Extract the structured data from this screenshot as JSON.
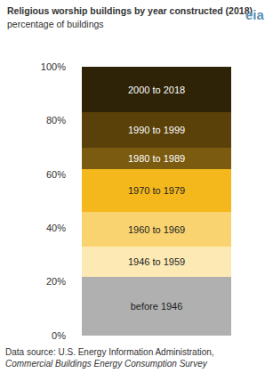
{
  "chart_data": {
    "type": "bar",
    "title": "Religious worship buildings by year constructed (2018)",
    "subtitle": "percentage of buildings",
    "logo": "eia",
    "source": {
      "text": "Data source: U.S. Energy Information Administration,",
      "italic": "Commercial Buildings Energy Consumption Survey"
    },
    "categories": [
      null
    ],
    "series": [
      {
        "name": "before 1946",
        "color": "#b0b0b0",
        "values": [
          22
        ]
      },
      {
        "name": "1946 to 1959",
        "color": "#fce9b4",
        "values": [
          11
        ]
      },
      {
        "name": "1960 to 1969",
        "color": "#f9d36f",
        "values": [
          13
        ]
      },
      {
        "name": "1970 to 1979",
        "color": "#f4b81c",
        "values": [
          16
        ]
      },
      {
        "name": "1980 to 1989",
        "color": "#7a5b10",
        "values": [
          8
        ]
      },
      {
        "name": "1990 to 1999",
        "color": "#594109",
        "values": [
          13
        ]
      },
      {
        "name": "2000 to 2018",
        "color": "#2e2306",
        "values": [
          17
        ]
      }
    ],
    "stacked": true,
    "ylim": [
      0,
      100
    ],
    "yticks": [
      {
        "value": 0,
        "label": "0%"
      },
      {
        "value": 20,
        "label": "20%"
      },
      {
        "value": 40,
        "label": "40%"
      },
      {
        "value": 60,
        "label": "60%"
      },
      {
        "value": 80,
        "label": "80%"
      },
      {
        "value": 100,
        "label": "100%"
      }
    ],
    "grid": false,
    "tick_labels": "y"
  }
}
